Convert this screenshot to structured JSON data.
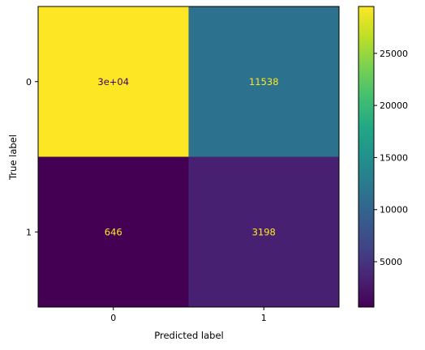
{
  "chart_data": {
    "type": "heatmap",
    "title": "",
    "xlabel": "Predicted label",
    "ylabel": "True label",
    "x_categories": [
      "0",
      "1"
    ],
    "y_categories": [
      "0",
      "1"
    ],
    "values": [
      [
        29500,
        11538
      ],
      [
        646,
        3198
      ]
    ],
    "cell_labels": [
      [
        "3e+04",
        "11538"
      ],
      [
        "646",
        "3198"
      ]
    ],
    "colormap": "viridis",
    "cell_text_colors": [
      [
        "#440154",
        "#fde725"
      ],
      [
        "#fde725",
        "#fde725"
      ]
    ],
    "colorbar": {
      "min": 646,
      "max": 29500,
      "ticks": [
        5000,
        10000,
        15000,
        20000,
        25000
      ],
      "tick_labels": [
        "5000",
        "10000",
        "15000",
        "20000",
        "25000"
      ]
    }
  }
}
